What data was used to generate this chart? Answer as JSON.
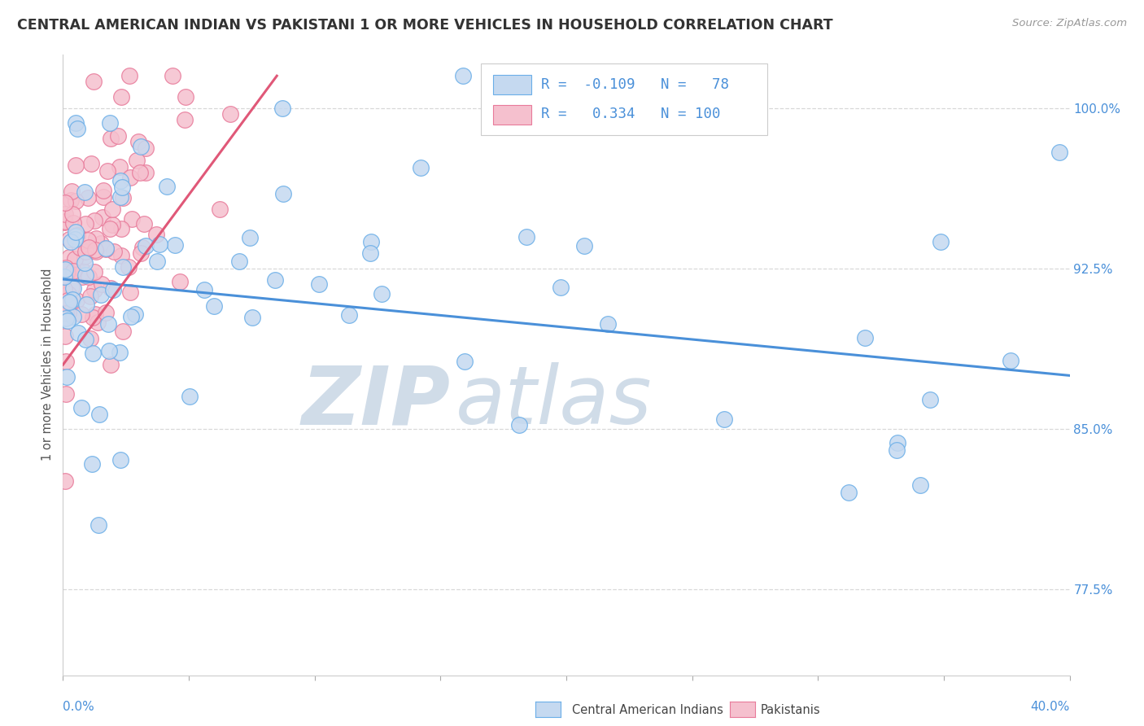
{
  "title": "CENTRAL AMERICAN INDIAN VS PAKISTANI 1 OR MORE VEHICLES IN HOUSEHOLD CORRELATION CHART",
  "source": "Source: ZipAtlas.com",
  "xmin": 0.0,
  "xmax": 40.0,
  "ymin": 73.5,
  "ymax": 102.5,
  "R_blue": -0.109,
  "N_blue": 78,
  "R_pink": 0.334,
  "N_pink": 100,
  "blue_fill": "#c5d9f0",
  "pink_fill": "#f5c0ce",
  "blue_edge": "#6aaee8",
  "pink_edge": "#e87a9a",
  "blue_line": "#4a90d9",
  "pink_line": "#e05878",
  "watermark_color": "#d0dce8",
  "grid_color": "#d8d8d8",
  "ylabel_color": "#4a90d9",
  "background": "#ffffff",
  "blue_trend": [
    0.0,
    40.0,
    92.0,
    87.5
  ],
  "pink_trend": [
    0.0,
    8.5,
    88.0,
    101.5
  ]
}
